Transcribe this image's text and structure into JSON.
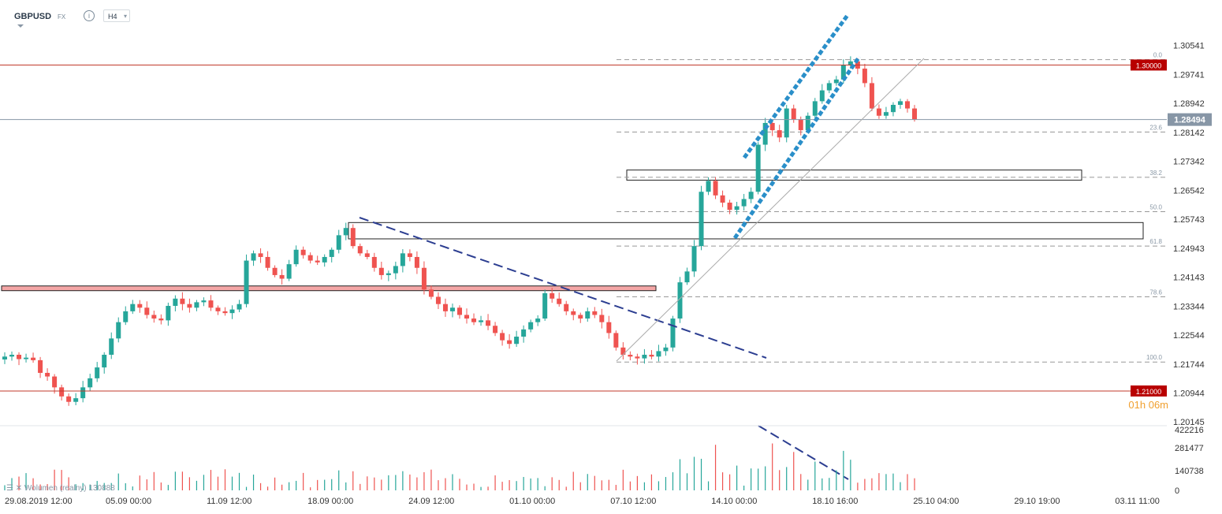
{
  "header": {
    "symbol": "GBPUSD",
    "market": "FX",
    "info_icon": "info-icon",
    "timeframe": "H4"
  },
  "colors": {
    "bull": "#26a69a",
    "bear": "#ef5350",
    "resistance": "#c0392b",
    "price_label_bg": "#b80000",
    "current_price_bg": "#8796a6",
    "trendline": "#2c3e91",
    "channel": "#2a8fc9",
    "zone_fill": "#f4a6a6",
    "countdown": "#f0a030"
  },
  "chart_data": {
    "type": "candlestick",
    "symbol": "GBPUSD",
    "timeframe": "H4",
    "price_axis_ticks": [
      "1.30541",
      "1.29741",
      "1.28942",
      "1.28142",
      "1.27342",
      "1.26542",
      "1.25743",
      "1.24943",
      "1.24143",
      "1.23344",
      "1.22544",
      "1.21744",
      "1.20944",
      "1.20145"
    ],
    "ylim": [
      1.2015,
      1.3075
    ],
    "time_axis_labels": [
      "29.08.2019",
      "12:00",
      "05.09",
      "00:00",
      "11.09",
      "12:00",
      "18.09",
      "00:00",
      "24.09",
      "12:00",
      "01.10",
      "00:00",
      "07.10",
      "12:00",
      "14.10",
      "00:00",
      "18.10",
      "16:00",
      "25.10",
      "04:00",
      "29.10",
      "19:00",
      "03.11",
      "11:00"
    ],
    "price_levels": [
      {
        "label": "1.30000",
        "value": 1.3
      },
      {
        "label": "1.21000",
        "value": 1.21
      }
    ],
    "current_price": {
      "label": "1.28494",
      "value": 1.28494
    },
    "countdown": "01h 06m",
    "fibonacci": [
      {
        "label": "0.0",
        "value": 1.3015
      },
      {
        "label": "23.6",
        "value": 1.2815
      },
      {
        "label": "38.2",
        "value": 1.269
      },
      {
        "label": "50.0",
        "value": 1.2595
      },
      {
        "label": "61.8",
        "value": 1.25
      },
      {
        "label": "78.6",
        "value": 1.236
      },
      {
        "label": "100.0",
        "value": 1.218
      }
    ],
    "zones": [
      {
        "name": "support-zone",
        "top": 1.239,
        "bottom": 1.2382
      },
      {
        "name": "box-upper",
        "top": 1.271,
        "bottom": 1.2682
      },
      {
        "name": "box-lower",
        "top": 1.2565,
        "bottom": 1.252
      }
    ],
    "volume": {
      "label": "Wolumen",
      "sublabel": "(realny)",
      "last_value": "130888",
      "ticks": [
        "422216",
        "281477",
        "140738",
        "0"
      ],
      "max": 422216
    },
    "series_ohlc_path": [
      1.2195,
      1.22,
      1.2188,
      1.2192,
      1.2185,
      1.215,
      1.214,
      1.211,
      1.2085,
      1.207,
      1.208,
      1.211,
      1.2135,
      1.2165,
      1.22,
      1.2245,
      1.229,
      1.232,
      1.234,
      1.233,
      1.231,
      1.23,
      1.2295,
      1.2335,
      1.2355,
      1.234,
      1.233,
      1.2345,
      1.235,
      1.233,
      1.232,
      1.2315,
      1.2325,
      1.234,
      1.246,
      1.248,
      1.247,
      1.244,
      1.242,
      1.241,
      1.245,
      1.249,
      1.2475,
      1.246,
      1.2455,
      1.247,
      1.249,
      1.253,
      1.255,
      1.25,
      1.248,
      1.247,
      1.244,
      1.242,
      1.2425,
      1.2445,
      1.248,
      1.247,
      1.244,
      1.238,
      1.236,
      1.234,
      1.232,
      1.233,
      1.231,
      1.23,
      1.229,
      1.2295,
      1.228,
      1.226,
      1.224,
      1.223,
      1.225,
      1.227,
      1.229,
      1.23,
      1.237,
      1.2355,
      1.234,
      1.232,
      1.231,
      1.23,
      1.232,
      1.231,
      1.229,
      1.226,
      1.222,
      1.22,
      1.2195,
      1.219,
      1.22,
      1.2195,
      1.221,
      1.222,
      1.23,
      1.24,
      1.243,
      1.25,
      1.265,
      1.268,
      1.264,
      1.262,
      1.26,
      1.261,
      1.263,
      1.265,
      1.278,
      1.284,
      1.282,
      1.28,
      1.288,
      1.285,
      1.282,
      1.286,
      1.29,
      1.293,
      1.295,
      1.296,
      1.3,
      1.301,
      1.299,
      1.295,
      1.288,
      1.286,
      1.287,
      1.289,
      1.29,
      1.288,
      1.285
    ]
  }
}
